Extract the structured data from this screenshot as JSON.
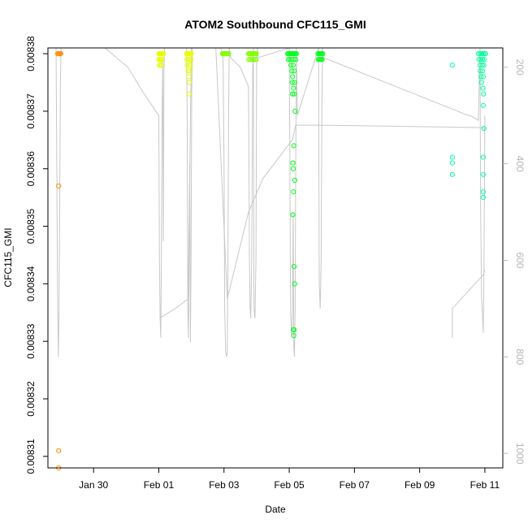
{
  "chart_data": {
    "type": "scatter",
    "title": "ATOM2 Southbound CFC115_GMI",
    "xlabel": "Date",
    "ylabel": "CFC115_GMI",
    "x_ticks": [
      {
        "day": 29.0,
        "label": "Jan 30"
      },
      {
        "day": 31.0,
        "label": "Feb 01"
      },
      {
        "day": 33.0,
        "label": "Feb 03"
      },
      {
        "day": 35.0,
        "label": "Feb 05"
      },
      {
        "day": 37.0,
        "label": "Feb 07"
      },
      {
        "day": 39.0,
        "label": "Feb 09"
      },
      {
        "day": 41.0,
        "label": "Feb 11"
      }
    ],
    "xlim_days": [
      27.6,
      41.55
    ],
    "ylim": [
      0.008308,
      0.008381
    ],
    "y_ticks": [
      {
        "value": 0.00831,
        "label": "0.00831"
      },
      {
        "value": 0.00832,
        "label": "0.00832"
      },
      {
        "value": 0.00833,
        "label": "0.00833"
      },
      {
        "value": 0.00834,
        "label": "0.00834"
      },
      {
        "value": 0.00835,
        "label": "0.00835"
      },
      {
        "value": 0.00836,
        "label": "0.00836"
      },
      {
        "value": 0.00837,
        "label": "0.00837"
      },
      {
        "value": 0.00838,
        "label": "0.00838"
      }
    ],
    "y2_ticks": [
      {
        "value": 200,
        "label": "200"
      },
      {
        "value": 400,
        "label": "400"
      },
      {
        "value": 600,
        "label": "600"
      },
      {
        "value": 800,
        "label": "800"
      },
      {
        "value": 1000,
        "label": "1000"
      }
    ],
    "y2lim_reversed": [
      1030,
      160
    ],
    "pressure_trace_color": "#c8c8c8",
    "pressure_trace": [
      [
        27.85,
        160
      ],
      [
        27.86,
        260
      ],
      [
        27.88,
        500
      ],
      [
        27.9,
        700
      ],
      [
        27.92,
        800
      ],
      [
        27.94,
        720
      ],
      [
        27.96,
        480
      ],
      [
        27.98,
        240
      ],
      [
        28.0,
        160
      ],
      [
        29.35,
        160
      ],
      [
        30.05,
        200
      ],
      [
        30.5,
        250
      ],
      [
        31.0,
        300
      ],
      [
        31.02,
        600
      ],
      [
        31.04,
        720
      ],
      [
        31.06,
        760
      ],
      [
        31.08,
        600
      ],
      [
        31.1,
        300
      ],
      [
        31.12,
        180
      ],
      [
        31.14,
        560
      ],
      [
        31.16,
        200
      ],
      [
        31.18,
        160
      ],
      [
        31.3,
        160
      ],
      [
        31.5,
        160
      ],
      [
        31.85,
        160
      ],
      [
        31.87,
        300
      ],
      [
        31.89,
        700
      ],
      [
        31.91,
        760
      ],
      [
        31.93,
        600
      ],
      [
        31.95,
        400
      ],
      [
        31.97,
        770
      ],
      [
        31.99,
        600
      ],
      [
        32.01,
        250
      ],
      [
        32.03,
        160
      ],
      [
        32.5,
        160
      ],
      [
        32.85,
        160
      ],
      [
        32.9,
        160
      ],
      [
        32.97,
        180
      ],
      [
        33.0,
        400
      ],
      [
        33.02,
        700
      ],
      [
        33.05,
        790
      ],
      [
        33.08,
        800
      ],
      [
        33.1,
        790
      ],
      [
        33.12,
        600
      ],
      [
        33.14,
        300
      ],
      [
        33.16,
        160
      ],
      [
        33.2,
        180
      ],
      [
        33.5,
        200
      ],
      [
        33.75,
        240
      ],
      [
        33.78,
        600
      ],
      [
        33.8,
        700
      ],
      [
        33.82,
        720
      ],
      [
        33.85,
        600
      ],
      [
        33.88,
        200
      ],
      [
        33.9,
        160
      ],
      [
        33.92,
        700
      ],
      [
        33.95,
        720
      ],
      [
        33.98,
        600
      ],
      [
        34.0,
        200
      ],
      [
        34.02,
        160
      ],
      [
        34.05,
        180
      ],
      [
        35.0,
        160
      ],
      [
        35.02,
        400
      ],
      [
        35.04,
        700
      ],
      [
        35.06,
        740
      ],
      [
        35.08,
        760
      ],
      [
        35.1,
        700
      ],
      [
        35.12,
        500
      ],
      [
        35.14,
        780
      ],
      [
        35.16,
        800
      ],
      [
        35.18,
        700
      ],
      [
        35.2,
        400
      ],
      [
        35.22,
        160
      ],
      [
        35.25,
        300
      ],
      [
        35.9,
        160
      ],
      [
        35.92,
        650
      ],
      [
        35.95,
        700
      ],
      [
        35.98,
        600
      ],
      [
        36.0,
        300
      ],
      [
        36.02,
        160
      ],
      [
        36.05,
        180
      ],
      [
        40.5,
        300
      ],
      [
        40.55,
        300
      ],
      [
        40.8,
        310
      ],
      [
        40.85,
        160
      ],
      [
        40.87,
        500
      ],
      [
        40.9,
        680
      ],
      [
        40.92,
        700
      ],
      [
        40.95,
        750
      ],
      [
        40.97,
        640
      ],
      [
        41.0,
        300
      ]
    ],
    "pressure_trace_2": [
      [
        31.02,
        720
      ],
      [
        31.5,
        700
      ],
      [
        31.9,
        680
      ],
      [
        32.0,
        160
      ]
    ],
    "pressure_trace_3": [
      [
        32.75,
        160
      ],
      [
        33.1,
        680
      ],
      [
        33.75,
        500
      ],
      [
        34.2,
        430
      ],
      [
        35.1,
        350
      ],
      [
        35.2,
        320
      ],
      [
        36.0,
        320
      ],
      [
        40.95,
        325
      ],
      [
        41.0,
        330
      ]
    ],
    "pressure_trace_4": [
      [
        40.0,
        760
      ],
      [
        40.0,
        700
      ],
      [
        40.95,
        630
      ],
      [
        41.0,
        620
      ]
    ],
    "series": [
      {
        "group": "flight1",
        "color": "#ff8c00",
        "points": [
          [
            27.9,
            0.00838
          ],
          [
            27.92,
            0.00838
          ],
          [
            27.95,
            0.00838
          ],
          [
            27.97,
            0.00838
          ],
          [
            27.99,
            0.00838
          ],
          [
            27.93,
            0.008357
          ],
          [
            27.93,
            0.008311
          ],
          [
            27.93,
            0.008308
          ]
        ]
      },
      {
        "group": "flight2",
        "color": "#e6ff00",
        "points": [
          [
            31.0,
            0.00838
          ],
          [
            31.02,
            0.00838
          ],
          [
            31.04,
            0.00838
          ],
          [
            31.06,
            0.00838
          ],
          [
            31.08,
            0.00838
          ],
          [
            31.1,
            0.00838
          ],
          [
            31.12,
            0.00838
          ],
          [
            31.14,
            0.00838
          ],
          [
            31.0,
            0.008379
          ],
          [
            31.03,
            0.008379
          ],
          [
            31.06,
            0.008379
          ],
          [
            31.09,
            0.008379
          ],
          [
            31.02,
            0.008378
          ],
          [
            31.05,
            0.008378
          ],
          [
            31.08,
            0.008378
          ],
          [
            31.85,
            0.00838
          ],
          [
            31.88,
            0.00838
          ],
          [
            31.91,
            0.00838
          ],
          [
            31.94,
            0.00838
          ],
          [
            31.97,
            0.00838
          ],
          [
            32.0,
            0.00838
          ],
          [
            31.86,
            0.008379
          ],
          [
            31.9,
            0.008379
          ],
          [
            31.95,
            0.008379
          ],
          [
            31.99,
            0.008379
          ],
          [
            31.87,
            0.008378
          ],
          [
            31.93,
            0.008378
          ],
          [
            31.97,
            0.008378
          ],
          [
            31.9,
            0.008377
          ],
          [
            31.96,
            0.008377
          ],
          [
            31.92,
            0.008376
          ],
          [
            31.94,
            0.008375
          ],
          [
            31.93,
            0.008373
          ]
        ]
      },
      {
        "group": "flight3",
        "color": "#80ff00",
        "points": [
          [
            32.95,
            0.00838
          ],
          [
            32.98,
            0.00838
          ],
          [
            33.0,
            0.00838
          ],
          [
            33.02,
            0.00838
          ],
          [
            33.05,
            0.00838
          ],
          [
            33.08,
            0.00838
          ],
          [
            33.11,
            0.00838
          ],
          [
            33.14,
            0.00838
          ],
          [
            33.75,
            0.00838
          ],
          [
            33.78,
            0.00838
          ],
          [
            33.81,
            0.00838
          ],
          [
            33.84,
            0.00838
          ],
          [
            33.87,
            0.00838
          ],
          [
            33.9,
            0.00838
          ],
          [
            33.93,
            0.00838
          ],
          [
            33.96,
            0.00838
          ],
          [
            33.99,
            0.00838
          ],
          [
            33.76,
            0.008379
          ],
          [
            33.8,
            0.008379
          ],
          [
            33.85,
            0.008379
          ],
          [
            33.9,
            0.008379
          ],
          [
            33.95,
            0.008379
          ],
          [
            33.98,
            0.008379
          ]
        ]
      },
      {
        "group": "flight4",
        "color": "#00ff1a",
        "points": [
          [
            34.95,
            0.00838
          ],
          [
            34.98,
            0.00838
          ],
          [
            35.01,
            0.00838
          ],
          [
            35.04,
            0.00838
          ],
          [
            35.07,
            0.00838
          ],
          [
            35.1,
            0.00838
          ],
          [
            35.13,
            0.00838
          ],
          [
            35.16,
            0.00838
          ],
          [
            35.19,
            0.00838
          ],
          [
            35.22,
            0.00838
          ],
          [
            34.97,
            0.008379
          ],
          [
            35.02,
            0.008379
          ],
          [
            35.08,
            0.008379
          ],
          [
            35.14,
            0.008379
          ],
          [
            35.2,
            0.008379
          ],
          [
            35.05,
            0.008378
          ],
          [
            35.12,
            0.008378
          ],
          [
            35.08,
            0.008377
          ],
          [
            35.15,
            0.008377
          ],
          [
            35.1,
            0.008376
          ],
          [
            35.16,
            0.008375
          ],
          [
            35.09,
            0.008375
          ],
          [
            35.13,
            0.008374
          ],
          [
            35.1,
            0.008373
          ],
          [
            35.15,
            0.008373
          ],
          [
            35.18,
            0.00837
          ],
          [
            35.14,
            0.008364
          ],
          [
            35.11,
            0.008361
          ],
          [
            35.12,
            0.00836
          ],
          [
            35.17,
            0.008358
          ],
          [
            35.13,
            0.008356
          ],
          [
            35.11,
            0.008352
          ],
          [
            35.15,
            0.008343
          ],
          [
            35.17,
            0.00834
          ],
          [
            35.13,
            0.008332
          ],
          [
            35.15,
            0.008332
          ],
          [
            35.14,
            0.008331
          ],
          [
            35.88,
            0.00838
          ],
          [
            35.91,
            0.00838
          ],
          [
            35.94,
            0.00838
          ],
          [
            35.97,
            0.00838
          ],
          [
            36.0,
            0.00838
          ],
          [
            36.03,
            0.00838
          ],
          [
            35.89,
            0.008379
          ],
          [
            35.95,
            0.008379
          ],
          [
            36.01,
            0.008379
          ],
          [
            35.92,
            0.008379
          ],
          [
            35.98,
            0.008379
          ]
        ]
      },
      {
        "group": "flight5",
        "color": "#00ff9c",
        "points": [
          [
            40.0,
            0.008378
          ],
          [
            40.0,
            0.008362
          ],
          [
            40.0,
            0.008361
          ],
          [
            40.0,
            0.008359
          ],
          [
            40.8,
            0.00838
          ],
          [
            40.85,
            0.00838
          ],
          [
            40.9,
            0.00838
          ],
          [
            40.95,
            0.00838
          ],
          [
            41.0,
            0.00838
          ],
          [
            41.02,
            0.00838
          ],
          [
            40.82,
            0.008379
          ],
          [
            40.88,
            0.008379
          ],
          [
            40.93,
            0.008379
          ],
          [
            40.98,
            0.008379
          ],
          [
            40.85,
            0.008378
          ],
          [
            40.92,
            0.008378
          ],
          [
            40.97,
            0.008378
          ],
          [
            40.86,
            0.008377
          ],
          [
            40.93,
            0.008377
          ],
          [
            40.88,
            0.008376
          ],
          [
            40.95,
            0.008376
          ],
          [
            40.9,
            0.008375
          ],
          [
            40.94,
            0.008374
          ],
          [
            40.96,
            0.008373
          ],
          [
            40.95,
            0.008371
          ],
          [
            40.97,
            0.008367
          ],
          [
            40.95,
            0.008362
          ],
          [
            40.95,
            0.008359
          ],
          [
            40.95,
            0.008356
          ],
          [
            40.95,
            0.008355
          ]
        ]
      }
    ]
  }
}
